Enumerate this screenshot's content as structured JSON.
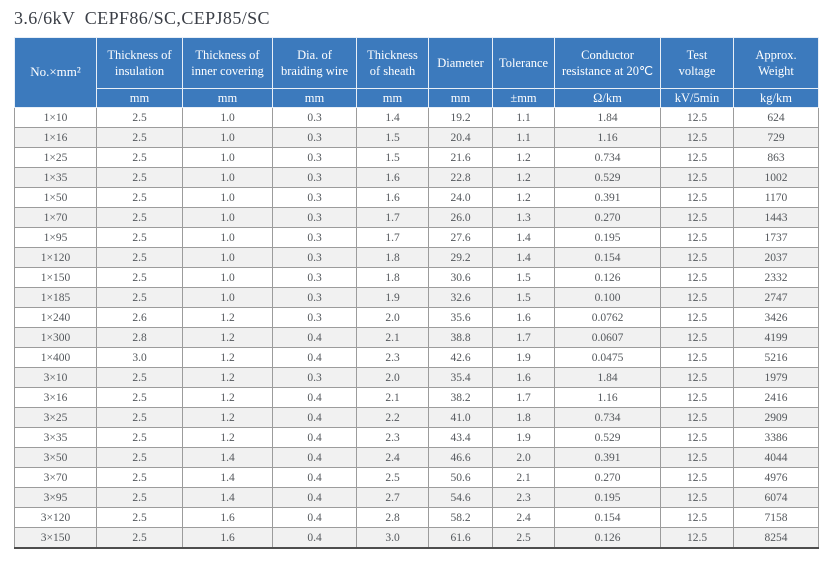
{
  "page": {
    "title": "3.6/6kV  CEPF86/SC,CEPJ85/SC"
  },
  "colors": {
    "header_bg": "#3c7abd",
    "stripe": "#f1f1f1",
    "body_text": "#54585c",
    "title_color": "#3a3e46",
    "grid_line": "#9c9c9c"
  },
  "table": {
    "columns": [
      {
        "label": "No.×mm²",
        "unit": null
      },
      {
        "label": "Thickness of insulation",
        "unit": "mm"
      },
      {
        "label": "Thickness of inner covering",
        "unit": "mm"
      },
      {
        "label": "Dia. of braiding wire",
        "unit": "mm"
      },
      {
        "label": "Thickness of sheath",
        "unit": "mm"
      },
      {
        "label": "Diameter",
        "unit": "mm"
      },
      {
        "label": "Tolerance",
        "unit": "±mm"
      },
      {
        "label": "Conductor resistance at 20℃",
        "unit": "Ω/km"
      },
      {
        "label": "Test voltage",
        "unit": "kV/5min"
      },
      {
        "label": "Approx. Weight",
        "unit": "kg/km"
      }
    ],
    "rows": [
      [
        "1×10",
        "2.5",
        "1.0",
        "0.3",
        "1.4",
        "19.2",
        "1.1",
        "1.84",
        "12.5",
        "624"
      ],
      [
        "1×16",
        "2.5",
        "1.0",
        "0.3",
        "1.5",
        "20.4",
        "1.1",
        "1.16",
        "12.5",
        "729"
      ],
      [
        "1×25",
        "2.5",
        "1.0",
        "0.3",
        "1.5",
        "21.6",
        "1.2",
        "0.734",
        "12.5",
        "863"
      ],
      [
        "1×35",
        "2.5",
        "1.0",
        "0.3",
        "1.6",
        "22.8",
        "1.2",
        "0.529",
        "12.5",
        "1002"
      ],
      [
        "1×50",
        "2.5",
        "1.0",
        "0.3",
        "1.6",
        "24.0",
        "1.2",
        "0.391",
        "12.5",
        "1170"
      ],
      [
        "1×70",
        "2.5",
        "1.0",
        "0.3",
        "1.7",
        "26.0",
        "1.3",
        "0.270",
        "12.5",
        "1443"
      ],
      [
        "1×95",
        "2.5",
        "1.0",
        "0.3",
        "1.7",
        "27.6",
        "1.4",
        "0.195",
        "12.5",
        "1737"
      ],
      [
        "1×120",
        "2.5",
        "1.0",
        "0.3",
        "1.8",
        "29.2",
        "1.4",
        "0.154",
        "12.5",
        "2037"
      ],
      [
        "1×150",
        "2.5",
        "1.0",
        "0.3",
        "1.8",
        "30.6",
        "1.5",
        "0.126",
        "12.5",
        "2332"
      ],
      [
        "1×185",
        "2.5",
        "1.0",
        "0.3",
        "1.9",
        "32.6",
        "1.5",
        "0.100",
        "12.5",
        "2747"
      ],
      [
        "1×240",
        "2.6",
        "1.2",
        "0.3",
        "2.0",
        "35.6",
        "1.6",
        "0.0762",
        "12.5",
        "3426"
      ],
      [
        "1×300",
        "2.8",
        "1.2",
        "0.4",
        "2.1",
        "38.8",
        "1.7",
        "0.0607",
        "12.5",
        "4199"
      ],
      [
        "1×400",
        "3.0",
        "1.2",
        "0.4",
        "2.3",
        "42.6",
        "1.9",
        "0.0475",
        "12.5",
        "5216"
      ],
      [
        "3×10",
        "2.5",
        "1.2",
        "0.3",
        "2.0",
        "35.4",
        "1.6",
        "1.84",
        "12.5",
        "1979"
      ],
      [
        "3×16",
        "2.5",
        "1.2",
        "0.4",
        "2.1",
        "38.2",
        "1.7",
        "1.16",
        "12.5",
        "2416"
      ],
      [
        "3×25",
        "2.5",
        "1.2",
        "0.4",
        "2.2",
        "41.0",
        "1.8",
        "0.734",
        "12.5",
        "2909"
      ],
      [
        "3×35",
        "2.5",
        "1.2",
        "0.4",
        "2.3",
        "43.4",
        "1.9",
        "0.529",
        "12.5",
        "3386"
      ],
      [
        "3×50",
        "2.5",
        "1.4",
        "0.4",
        "2.4",
        "46.6",
        "2.0",
        "0.391",
        "12.5",
        "4044"
      ],
      [
        "3×70",
        "2.5",
        "1.4",
        "0.4",
        "2.5",
        "50.6",
        "2.1",
        "0.270",
        "12.5",
        "4976"
      ],
      [
        "3×95",
        "2.5",
        "1.4",
        "0.4",
        "2.7",
        "54.6",
        "2.3",
        "0.195",
        "12.5",
        "6074"
      ],
      [
        "3×120",
        "2.5",
        "1.6",
        "0.4",
        "2.8",
        "58.2",
        "2.4",
        "0.154",
        "12.5",
        "7158"
      ],
      [
        "3×150",
        "2.5",
        "1.6",
        "0.4",
        "3.0",
        "61.6",
        "2.5",
        "0.126",
        "12.5",
        "8254"
      ]
    ]
  }
}
